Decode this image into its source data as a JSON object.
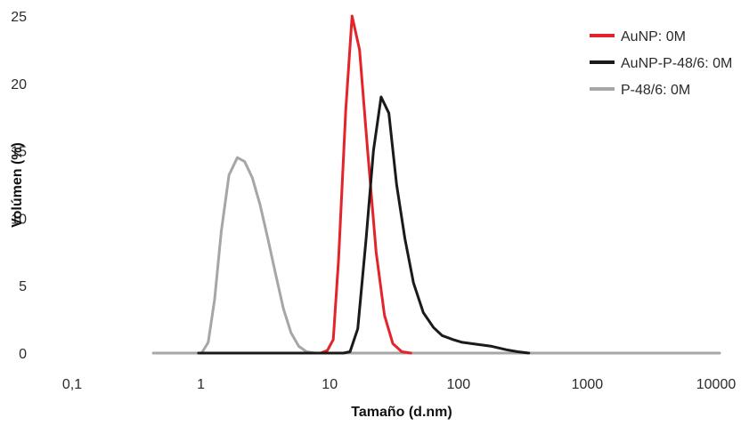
{
  "chart_data": {
    "type": "line",
    "title": "",
    "xlabel": "Tamaño (d.nm)",
    "ylabel": "Volúmen (%)",
    "x_scale": "log",
    "xlim": [
      0.1,
      10000
    ],
    "ylim": [
      0,
      25
    ],
    "x_ticks": [
      {
        "value": 0.1,
        "label": "0,1"
      },
      {
        "value": 1,
        "label": "1"
      },
      {
        "value": 10,
        "label": "10"
      },
      {
        "value": 100,
        "label": "100"
      },
      {
        "value": 1000,
        "label": "1000"
      },
      {
        "value": 10000,
        "label": "10000"
      }
    ],
    "y_ticks": [
      {
        "value": 0,
        "label": "0"
      },
      {
        "value": 5,
        "label": "5"
      },
      {
        "value": 10,
        "label": "10"
      },
      {
        "value": 15,
        "label": "15"
      },
      {
        "value": 20,
        "label": "20"
      },
      {
        "value": 25,
        "label": "25"
      }
    ],
    "grid": false,
    "legend_position": "top-right",
    "series": [
      {
        "name": "AuNP: 0M",
        "color": "#e3242b",
        "points": [
          [
            0.9,
            0
          ],
          [
            8.0,
            0
          ],
          [
            9.0,
            0.2
          ],
          [
            10.0,
            1.0
          ],
          [
            11.0,
            7.0
          ],
          [
            12.5,
            18.0
          ],
          [
            14.0,
            25.0
          ],
          [
            16.0,
            22.5
          ],
          [
            18.5,
            15.0
          ],
          [
            21.5,
            7.5
          ],
          [
            25.0,
            2.8
          ],
          [
            29.0,
            0.7
          ],
          [
            34.0,
            0.1
          ],
          [
            40.0,
            0
          ]
        ]
      },
      {
        "name": "AuNP-P-48/6: 0M",
        "color": "#1a1a1a",
        "points": [
          [
            0.9,
            0
          ],
          [
            12.0,
            0
          ],
          [
            13.5,
            0.1
          ],
          [
            15.5,
            1.8
          ],
          [
            18.0,
            8.5
          ],
          [
            20.5,
            15.0
          ],
          [
            23.5,
            19.0
          ],
          [
            27.0,
            17.8
          ],
          [
            31.0,
            12.5
          ],
          [
            36.0,
            8.5
          ],
          [
            42.0,
            5.2
          ],
          [
            50.0,
            3.0
          ],
          [
            60.0,
            1.9
          ],
          [
            70.0,
            1.3
          ],
          [
            85.0,
            1.0
          ],
          [
            100.0,
            0.8
          ],
          [
            130.0,
            0.65
          ],
          [
            170.0,
            0.5
          ],
          [
            220.0,
            0.25
          ],
          [
            270.0,
            0.1
          ],
          [
            330.0,
            0
          ]
        ]
      },
      {
        "name": "P-48/6: 0M",
        "color": "#a6a6a6",
        "points": [
          [
            0.4,
            0
          ],
          [
            0.95,
            0
          ],
          [
            1.07,
            0.8
          ],
          [
            1.2,
            4.0
          ],
          [
            1.35,
            9.0
          ],
          [
            1.55,
            13.2
          ],
          [
            1.8,
            14.5
          ],
          [
            2.05,
            14.2
          ],
          [
            2.35,
            13.0
          ],
          [
            2.7,
            11.0
          ],
          [
            3.1,
            8.5
          ],
          [
            3.6,
            5.7
          ],
          [
            4.1,
            3.3
          ],
          [
            4.7,
            1.5
          ],
          [
            5.4,
            0.5
          ],
          [
            6.2,
            0.1
          ],
          [
            7.2,
            0
          ],
          [
            10000,
            0
          ]
        ]
      }
    ]
  }
}
